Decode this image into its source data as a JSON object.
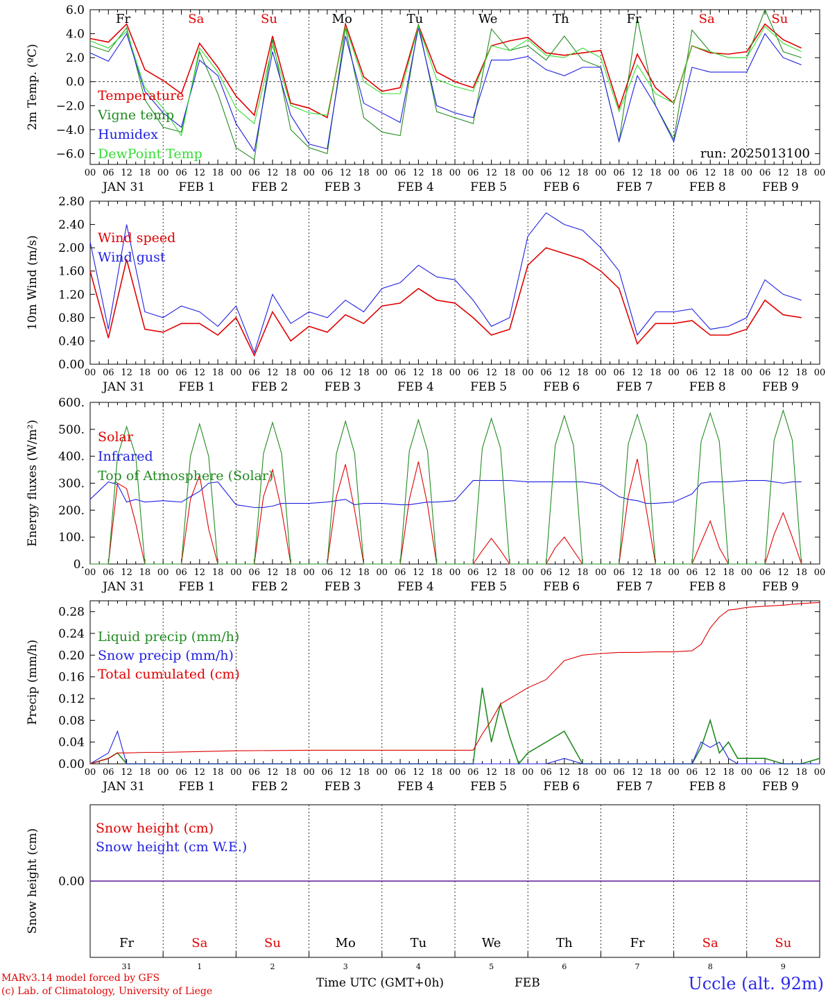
{
  "colors": {
    "red": "#e00000",
    "green": "#228b22",
    "blue": "#1f1fe0",
    "lightgreen": "#33dd33",
    "grid": "#000000"
  },
  "top_days": [
    "Fr",
    "Sa",
    "Su",
    "Mo",
    "Tu",
    "We",
    "Th",
    "Fr",
    "Sa",
    "Su"
  ],
  "top_day_colors": [
    "#000000",
    "#e00000",
    "#e00000",
    "#000000",
    "#000000",
    "#000000",
    "#000000",
    "#000000",
    "#e00000",
    "#e00000"
  ],
  "hour_labels": [
    "00",
    "06",
    "12",
    "18"
  ],
  "date_labels": [
    "JAN 31",
    "FEB  1",
    "FEB  2",
    "FEB  3",
    "FEB  4",
    "FEB  5",
    "FEB  6",
    "FEB  7",
    "FEB  8",
    "FEB  9"
  ],
  "bottom_day_numbers": [
    "31",
    "1",
    "2",
    "3",
    "4",
    "5",
    "6",
    "7",
    "8",
    "9"
  ],
  "footer": {
    "model": "MARv3.14 model forced by GFS",
    "lab": "(c) Lab. of Climatology, University of Liege",
    "time_label": "Time UTC (GMT+0h)",
    "month": "FEB",
    "station": "Uccle (alt. 92m)"
  },
  "chart_data": [
    {
      "type": "line",
      "ylabel": "2m Temp. (ºC)",
      "ylim": [
        -6.9,
        6.0
      ],
      "yticks": [
        "6.0",
        "4.0",
        "2.0",
        "0.0",
        "−2.0",
        "−4.0",
        "−6.0"
      ],
      "ytick_values": [
        6,
        4,
        2,
        0,
        -2,
        -4,
        -6
      ],
      "zero_line": true,
      "annotation": "run: 2025013100",
      "x_hours": [
        0,
        6,
        12,
        18,
        24,
        30,
        36,
        42,
        48,
        54,
        60,
        66,
        72,
        78,
        84,
        90,
        96,
        102,
        108,
        114,
        120,
        126,
        132,
        138,
        144,
        150,
        156,
        162,
        168,
        174,
        180,
        186,
        192,
        198,
        204,
        210,
        216,
        222,
        228,
        234
      ],
      "series": [
        {
          "name": "Temperature",
          "color": "#e00000",
          "values": [
            3.6,
            3.3,
            4.8,
            1.0,
            0.1,
            -1.0,
            3.2,
            1.2,
            -1.2,
            -2.8,
            3.8,
            -1.8,
            -2.2,
            -3.0,
            4.8,
            0.4,
            -0.8,
            -0.5,
            4.7,
            0.8,
            0.0,
            -0.5,
            3.0,
            3.4,
            3.7,
            2.4,
            2.2,
            2.4,
            2.6,
            -2.2,
            2.3,
            -0.5,
            -1.8,
            3.0,
            2.4,
            2.3,
            2.5,
            4.8,
            3.5,
            2.8
          ]
        },
        {
          "name": "Vigne temp",
          "color": "#228b22",
          "values": [
            3.0,
            2.5,
            4.5,
            -1.5,
            -3.8,
            -4.2,
            2.5,
            -1.0,
            -5.5,
            -6.5,
            3.5,
            -4.0,
            -5.5,
            -6.0,
            4.5,
            -3.0,
            -4.2,
            -4.5,
            4.8,
            -2.5,
            -3.0,
            -3.5,
            4.4,
            2.6,
            3.0,
            1.8,
            3.8,
            1.8,
            1.2,
            -5.0,
            5.3,
            -2.0,
            -4.8,
            4.3,
            2.5,
            2.0,
            2.0,
            6.0,
            2.5,
            2.0
          ]
        },
        {
          "name": "Humidex",
          "color": "#1f1fe0",
          "values": [
            2.4,
            1.7,
            4.0,
            -0.8,
            -2.6,
            -3.8,
            1.8,
            0.5,
            -3.5,
            -5.8,
            2.5,
            -2.8,
            -5.2,
            -5.6,
            3.8,
            -1.8,
            -2.6,
            -3.4,
            4.5,
            -2.0,
            -2.6,
            -3.0,
            1.8,
            1.8,
            2.1,
            1.0,
            0.5,
            1.2,
            1.2,
            -5.0,
            0.5,
            -2.0,
            -5.0,
            1.2,
            0.8,
            0.8,
            0.8,
            4.0,
            2.0,
            1.4
          ]
        },
        {
          "name": "DewPoint Temp",
          "color": "#33dd33",
          "values": [
            3.4,
            2.8,
            4.2,
            -0.5,
            -2.2,
            -4.5,
            2.8,
            0.8,
            -2.2,
            -3.5,
            3.0,
            -2.0,
            -2.6,
            -2.8,
            4.6,
            0.0,
            -1.0,
            -1.0,
            4.6,
            0.2,
            -0.4,
            -0.8,
            3.0,
            2.6,
            3.5,
            2.2,
            2.0,
            2.8,
            2.0,
            -2.5,
            1.4,
            -1.0,
            -1.8,
            3.0,
            2.5,
            2.0,
            2.0,
            4.6,
            3.2,
            2.5
          ]
        }
      ]
    },
    {
      "type": "line",
      "ylabel": "10m Wind (m/s)",
      "ylim": [
        0.0,
        2.8
      ],
      "yticks": [
        "2.80",
        "2.40",
        "2.00",
        "1.60",
        "1.20",
        "0.80",
        "0.40",
        "0.00"
      ],
      "ytick_values": [
        2.8,
        2.4,
        2.0,
        1.6,
        1.2,
        0.8,
        0.4,
        0.0
      ],
      "x_hours": [
        0,
        6,
        12,
        18,
        24,
        30,
        36,
        42,
        48,
        54,
        60,
        66,
        72,
        78,
        84,
        90,
        96,
        102,
        108,
        114,
        120,
        126,
        132,
        138,
        144,
        150,
        156,
        162,
        168,
        174,
        180,
        186,
        192,
        198,
        204,
        210,
        216,
        222,
        228,
        234
      ],
      "series": [
        {
          "name": "Wind speed",
          "color": "#e00000",
          "values": [
            1.6,
            0.45,
            1.8,
            0.6,
            0.55,
            0.7,
            0.7,
            0.5,
            0.8,
            0.15,
            0.9,
            0.4,
            0.65,
            0.55,
            0.85,
            0.7,
            1.0,
            1.05,
            1.3,
            1.1,
            1.05,
            0.8,
            0.5,
            0.6,
            1.7,
            2.0,
            1.9,
            1.8,
            1.6,
            1.3,
            0.35,
            0.7,
            0.7,
            0.75,
            0.5,
            0.5,
            0.6,
            1.1,
            0.85,
            0.8
          ]
        },
        {
          "name": "Wind gust",
          "color": "#1f1fe0",
          "values": [
            2.1,
            0.6,
            2.4,
            0.9,
            0.8,
            1.0,
            0.9,
            0.65,
            1.0,
            0.2,
            1.2,
            0.7,
            0.9,
            0.8,
            1.1,
            0.9,
            1.3,
            1.4,
            1.7,
            1.5,
            1.45,
            1.1,
            0.65,
            0.8,
            2.2,
            2.6,
            2.4,
            2.3,
            2.0,
            1.6,
            0.5,
            0.9,
            0.9,
            0.95,
            0.6,
            0.65,
            0.8,
            1.45,
            1.2,
            1.1
          ]
        }
      ]
    },
    {
      "type": "line",
      "ylabel": "Energy fluxes (W/m²)",
      "ylim": [
        0,
        600
      ],
      "yticks": [
        "600.",
        "500.",
        "400.",
        "300.",
        "200.",
        "100.",
        "0."
      ],
      "ytick_values": [
        600,
        500,
        400,
        300,
        200,
        100,
        0
      ],
      "x_hours": [
        0,
        6,
        9,
        12,
        15,
        18,
        24,
        30,
        33,
        36,
        39,
        42,
        48,
        54,
        57,
        60,
        63,
        66,
        72,
        78,
        81,
        84,
        87,
        90,
        96,
        102,
        105,
        108,
        111,
        114,
        120,
        126,
        129,
        132,
        135,
        138,
        144,
        150,
        153,
        156,
        159,
        162,
        168,
        174,
        177,
        180,
        183,
        186,
        192,
        198,
        201,
        204,
        207,
        210,
        216,
        222,
        225,
        228,
        231,
        234
      ],
      "series": [
        {
          "name": "Solar",
          "color": "#e00000",
          "values": [
            0,
            0,
            300,
            280,
            150,
            0,
            0,
            0,
            240,
            330,
            130,
            0,
            0,
            0,
            250,
            350,
            200,
            0,
            0,
            0,
            250,
            370,
            200,
            0,
            0,
            0,
            240,
            380,
            220,
            0,
            0,
            0,
            50,
            95,
            50,
            0,
            0,
            0,
            60,
            100,
            50,
            0,
            0,
            0,
            250,
            390,
            200,
            0,
            0,
            0,
            80,
            160,
            60,
            0,
            0,
            0,
            110,
            190,
            100,
            0
          ]
        },
        {
          "name": "Infrared",
          "color": "#1f1fe0",
          "values": [
            240,
            305,
            295,
            230,
            240,
            230,
            235,
            230,
            250,
            270,
            300,
            305,
            220,
            210,
            210,
            215,
            225,
            225,
            225,
            230,
            235,
            240,
            220,
            225,
            225,
            220,
            220,
            225,
            230,
            230,
            235,
            310,
            310,
            310,
            310,
            310,
            305,
            305,
            305,
            305,
            305,
            305,
            295,
            250,
            240,
            235,
            225,
            225,
            230,
            260,
            300,
            305,
            305,
            305,
            310,
            310,
            305,
            300,
            305,
            305
          ]
        },
        {
          "name": "Top of Atmosphere (Solar)",
          "color": "#228b22",
          "values": [
            0,
            0,
            400,
            510,
            400,
            0,
            0,
            0,
            400,
            520,
            400,
            0,
            0,
            0,
            410,
            525,
            410,
            0,
            0,
            0,
            410,
            530,
            410,
            0,
            0,
            0,
            420,
            535,
            420,
            0,
            0,
            0,
            430,
            540,
            430,
            0,
            0,
            0,
            440,
            550,
            440,
            0,
            0,
            0,
            445,
            555,
            445,
            0,
            0,
            0,
            455,
            560,
            455,
            0,
            0,
            0,
            460,
            570,
            460,
            0
          ]
        }
      ]
    },
    {
      "type": "line",
      "ylabel": "Precip (mm/h)",
      "ylim": [
        0.0,
        0.3
      ],
      "yticks": [
        "0.28",
        "0.24",
        "0.20",
        "0.16",
        "0.12",
        "0.08",
        "0.04",
        "0.00"
      ],
      "ytick_values": [
        0.28,
        0.24,
        0.2,
        0.16,
        0.12,
        0.08,
        0.04,
        0.0
      ],
      "x_hours": [
        0,
        6,
        9,
        12,
        18,
        24,
        48,
        72,
        96,
        120,
        126,
        129,
        132,
        135,
        138,
        141,
        144,
        150,
        156,
        162,
        168,
        174,
        180,
        186,
        192,
        198,
        201,
        204,
        207,
        210,
        213,
        216,
        222,
        228,
        234,
        240
      ],
      "series": [
        {
          "name": "Liquid precip (mm/h)",
          "color": "#228b22",
          "values": [
            0,
            0.01,
            0.02,
            0.0,
            0.0,
            0.0,
            0.0,
            0.0,
            0.0,
            0.0,
            0.0,
            0.14,
            0.04,
            0.11,
            0.05,
            0.0,
            0.02,
            0.04,
            0.06,
            0.0,
            0.0,
            0.0,
            0.0,
            0.0,
            0.0,
            0.0,
            0.03,
            0.08,
            0.02,
            0.04,
            0.01,
            0.01,
            0.01,
            0.0,
            0.0,
            0.01
          ]
        },
        {
          "name": "Snow precip (mm/h)",
          "color": "#1f1fe0",
          "values": [
            0,
            0.02,
            0.06,
            0.0,
            0.0,
            0.0,
            0.0,
            0.0,
            0.0,
            0.0,
            0.0,
            0.0,
            0.0,
            0.0,
            0.0,
            0.0,
            0.0,
            0.0,
            0.01,
            0.0,
            0.0,
            0.0,
            0.0,
            0.0,
            0.0,
            0.0,
            0.04,
            0.03,
            0.04,
            0.01,
            0.0,
            0.0,
            0.0,
            0.0,
            0.0,
            0.0
          ]
        },
        {
          "name": "Total cumulated (cm)",
          "color": "#e00000",
          "values": [
            0,
            0.01,
            0.02,
            0.02,
            0.021,
            0.021,
            0.024,
            0.025,
            0.025,
            0.025,
            0.025,
            0.055,
            0.08,
            0.11,
            0.12,
            0.13,
            0.14,
            0.155,
            0.19,
            0.2,
            0.203,
            0.205,
            0.205,
            0.206,
            0.206,
            0.208,
            0.22,
            0.25,
            0.27,
            0.283,
            0.285,
            0.288,
            0.29,
            0.292,
            0.295,
            0.297
          ]
        }
      ]
    },
    {
      "type": "line",
      "ylabel": "Snow height (cm)",
      "ylim": [
        -1,
        1
      ],
      "yticks": [
        "0.00"
      ],
      "ytick_values": [
        0
      ],
      "x_hours": [
        0,
        240
      ],
      "series": [
        {
          "name": "Snow height (cm)",
          "color": "#e00000",
          "values": [
            0,
            0
          ]
        },
        {
          "name": "Snow height (cm W.E.)",
          "color": "#1f1fe0",
          "values": [
            0,
            0
          ]
        }
      ]
    }
  ]
}
